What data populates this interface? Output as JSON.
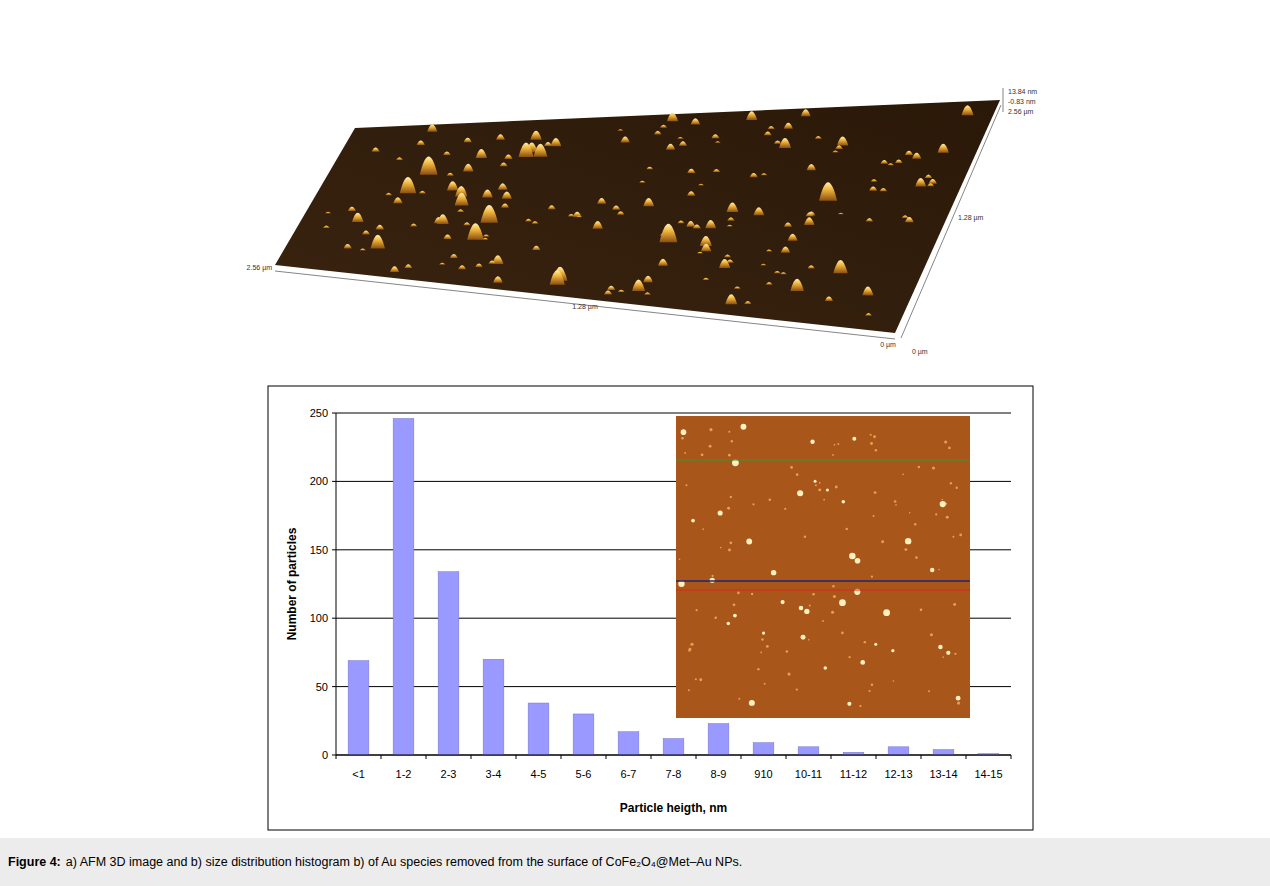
{
  "chart_data": {
    "type": "bar",
    "x_label": "Particle heigth, nm",
    "y_label": "Number of particles",
    "categories": [
      "<1",
      "1-2",
      "2-3",
      "3-4",
      "4-5",
      "5-6",
      "6-7",
      "7-8",
      "8-9",
      "910",
      "10-11",
      "11-12",
      "12-13",
      "13-14",
      "14-15"
    ],
    "values": [
      69,
      246,
      134,
      70,
      38,
      30,
      17,
      12,
      23,
      9,
      6,
      2,
      6,
      4,
      1
    ],
    "color": "#9999ff",
    "ylim": [
      0,
      250
    ],
    "yticks": [
      0,
      50,
      100,
      150,
      200,
      250
    ],
    "grid": true
  },
  "afm_3d": {
    "x_axis": [
      "2.56 µm",
      "1.28 µm",
      "0 µm"
    ],
    "y_axis": [
      "0 µm",
      "1.28 µm",
      "2.56 µm"
    ],
    "z_axis": [
      "13.84 nm",
      "-0.83 nm"
    ]
  },
  "caption": {
    "label": "Figure 4:",
    "text": "a) AFM 3D image and b) size distribution histogram b) of Au species removed from the surface of CoFe₂O₄@Met–Au NPs."
  }
}
